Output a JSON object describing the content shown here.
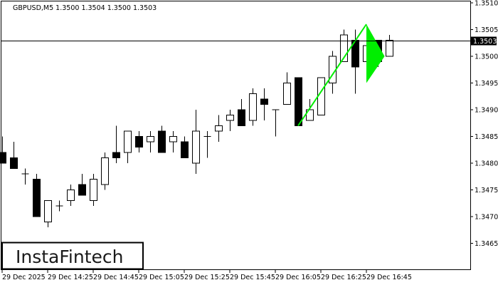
{
  "chart_data": {
    "type": "candlestick",
    "title": "GBPUSD,M5  1.3500 1.3504 1.3500 1.3503",
    "symbol": "GBPUSD",
    "timeframe": "M5",
    "ylim": [
      1.346,
      1.351
    ],
    "grid": false,
    "current_price": 1.3503,
    "current_price_label": "1.3503",
    "y_ticks": [
      "1.3510",
      "1.3505",
      "1.3500",
      "1.3495",
      "1.3490",
      "1.3485",
      "1.3480",
      "1.3475",
      "1.3470",
      "1.3465"
    ],
    "y_tick_values": [
      1.351,
      1.3505,
      1.35,
      1.3495,
      1.349,
      1.3485,
      1.348,
      1.3475,
      1.347,
      1.3465
    ],
    "x_ticks": [
      "29 Dec 2025",
      "29 Dec 14:25",
      "29 Dec 14:45",
      "29 Dec 15:05",
      "29 Dec 15:25",
      "29 Dec 15:45",
      "29 Dec 16:05",
      "29 Dec 16:25",
      "29 Dec 16:45"
    ],
    "x_tick_times": [
      "14:05",
      "14:25",
      "14:45",
      "15:05",
      "15:25",
      "15:45",
      "16:05",
      "16:25",
      "16:45"
    ],
    "candles": [
      {
        "t": "14:05",
        "o": 1.3482,
        "h": 1.3485,
        "l": 1.348,
        "c": 1.348
      },
      {
        "t": "14:10",
        "o": 1.3481,
        "h": 1.3484,
        "l": 1.3479,
        "c": 1.3479
      },
      {
        "t": "14:15",
        "o": 1.3478,
        "h": 1.3479,
        "l": 1.3476,
        "c": 1.3478
      },
      {
        "t": "14:20",
        "o": 1.3477,
        "h": 1.3478,
        "l": 1.347,
        "c": 1.347
      },
      {
        "t": "14:25",
        "o": 1.3469,
        "h": 1.3473,
        "l": 1.3468,
        "c": 1.3473
      },
      {
        "t": "14:30",
        "o": 1.3472,
        "h": 1.3473,
        "l": 1.3471,
        "c": 1.3472
      },
      {
        "t": "14:35",
        "o": 1.3473,
        "h": 1.3476,
        "l": 1.3472,
        "c": 1.3475
      },
      {
        "t": "14:40",
        "o": 1.3476,
        "h": 1.3478,
        "l": 1.3474,
        "c": 1.3474
      },
      {
        "t": "14:45",
        "o": 1.3473,
        "h": 1.3478,
        "l": 1.3472,
        "c": 1.3477
      },
      {
        "t": "14:50",
        "o": 1.3476,
        "h": 1.3482,
        "l": 1.3475,
        "c": 1.3481
      },
      {
        "t": "14:55",
        "o": 1.3482,
        "h": 1.3487,
        "l": 1.348,
        "c": 1.3481
      },
      {
        "t": "15:00",
        "o": 1.3482,
        "h": 1.3486,
        "l": 1.348,
        "c": 1.3486
      },
      {
        "t": "15:05",
        "o": 1.3485,
        "h": 1.3486,
        "l": 1.3482,
        "c": 1.3483
      },
      {
        "t": "15:10",
        "o": 1.3484,
        "h": 1.3486,
        "l": 1.3482,
        "c": 1.3485
      },
      {
        "t": "15:15",
        "o": 1.3486,
        "h": 1.3487,
        "l": 1.3482,
        "c": 1.3482
      },
      {
        "t": "15:20",
        "o": 1.3484,
        "h": 1.3486,
        "l": 1.3482,
        "c": 1.3485
      },
      {
        "t": "15:25",
        "o": 1.3484,
        "h": 1.3485,
        "l": 1.3481,
        "c": 1.3481
      },
      {
        "t": "15:30",
        "o": 1.348,
        "h": 1.349,
        "l": 1.3478,
        "c": 1.3486
      },
      {
        "t": "15:35",
        "o": 1.3485,
        "h": 1.3486,
        "l": 1.3481,
        "c": 1.3485
      },
      {
        "t": "15:40",
        "o": 1.3486,
        "h": 1.3489,
        "l": 1.3484,
        "c": 1.3487
      },
      {
        "t": "15:45",
        "o": 1.3488,
        "h": 1.349,
        "l": 1.3486,
        "c": 1.3489
      },
      {
        "t": "15:50",
        "o": 1.349,
        "h": 1.3492,
        "l": 1.3487,
        "c": 1.3487
      },
      {
        "t": "15:55",
        "o": 1.3488,
        "h": 1.3494,
        "l": 1.3487,
        "c": 1.3493
      },
      {
        "t": "16:00",
        "o": 1.3492,
        "h": 1.3494,
        "l": 1.3488,
        "c": 1.3491
      },
      {
        "t": "16:05",
        "o": 1.349,
        "h": 1.349,
        "l": 1.3485,
        "c": 1.349
      },
      {
        "t": "16:10",
        "o": 1.3491,
        "h": 1.3497,
        "l": 1.3491,
        "c": 1.3495
      },
      {
        "t": "16:15",
        "o": 1.3496,
        "h": 1.3496,
        "l": 1.3487,
        "c": 1.3487
      },
      {
        "t": "16:20",
        "o": 1.3488,
        "h": 1.3492,
        "l": 1.3488,
        "c": 1.349
      },
      {
        "t": "16:25",
        "o": 1.3489,
        "h": 1.3496,
        "l": 1.3489,
        "c": 1.3496
      },
      {
        "t": "16:30",
        "o": 1.3495,
        "h": 1.3501,
        "l": 1.3493,
        "c": 1.35
      },
      {
        "t": "16:35",
        "o": 1.3499,
        "h": 1.3505,
        "l": 1.3499,
        "c": 1.3504
      },
      {
        "t": "16:40",
        "o": 1.3503,
        "h": 1.3505,
        "l": 1.3493,
        "c": 1.3498
      },
      {
        "t": "16:45",
        "o": 1.3499,
        "h": 1.3502,
        "l": 1.3498,
        "c": 1.3502
      },
      {
        "t": "16:50",
        "o": 1.3503,
        "h": 1.3503,
        "l": 1.3498,
        "c": 1.3499
      },
      {
        "t": "16:55",
        "o": 1.35,
        "h": 1.3504,
        "l": 1.35,
        "c": 1.3503
      }
    ],
    "pattern": {
      "type": "bullish pennant",
      "color": "#00ee00",
      "pole": [
        {
          "t": "16:15",
          "p": 1.3487
        },
        {
          "t": "16:45",
          "p": 1.3506
        }
      ],
      "flag": [
        {
          "t": "16:45",
          "p": 1.3506
        },
        {
          "t": "16:45",
          "p": 1.3495
        },
        {
          "t": "16:53",
          "p": 1.35
        }
      ]
    }
  },
  "colors": {
    "bull_fill": "#ffffff",
    "bear_fill": "#000000",
    "outline": "#000000",
    "pattern": "#00ee00"
  },
  "logo": {
    "text": "InstaFintech"
  }
}
